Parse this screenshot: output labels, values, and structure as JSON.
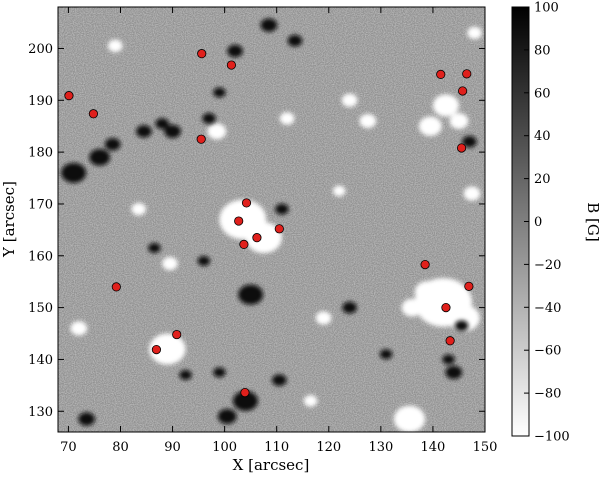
{
  "chart_data": {
    "type": "scatter",
    "background": "grayscale magnetogram map",
    "xlabel": "X [arcsec]",
    "ylabel": "Y [arcsec]",
    "xlim": [
      68,
      150
    ],
    "ylim": [
      126,
      208
    ],
    "xticks": [
      70,
      80,
      90,
      100,
      110,
      120,
      130,
      140,
      150
    ],
    "yticks": [
      130,
      140,
      150,
      160,
      170,
      180,
      190,
      200
    ],
    "colorbar": {
      "label": "B [G]",
      "range": [
        -100,
        100
      ],
      "ticks": [
        100,
        80,
        60,
        40,
        20,
        0,
        -20,
        -40,
        -60,
        -80,
        -100
      ],
      "tick_labels": [
        "100",
        "80",
        "60",
        "40",
        "20",
        "0",
        "−20",
        "−40",
        "−60",
        "−80",
        "−100"
      ],
      "colormap": "gray: -100 white to 100 black"
    },
    "marker_color": "#e0201c",
    "points": [
      {
        "x": 70.1,
        "y": 190.9
      },
      {
        "x": 74.8,
        "y": 187.4
      },
      {
        "x": 95.6,
        "y": 199.0
      },
      {
        "x": 101.3,
        "y": 196.8
      },
      {
        "x": 95.5,
        "y": 182.5
      },
      {
        "x": 141.5,
        "y": 195.0
      },
      {
        "x": 146.5,
        "y": 195.1
      },
      {
        "x": 145.7,
        "y": 191.8
      },
      {
        "x": 145.5,
        "y": 180.8
      },
      {
        "x": 104.2,
        "y": 170.2
      },
      {
        "x": 102.7,
        "y": 166.7
      },
      {
        "x": 110.5,
        "y": 165.2
      },
      {
        "x": 106.2,
        "y": 163.5
      },
      {
        "x": 103.7,
        "y": 162.2
      },
      {
        "x": 138.5,
        "y": 158.3
      },
      {
        "x": 79.2,
        "y": 154.0
      },
      {
        "x": 146.9,
        "y": 154.1
      },
      {
        "x": 142.5,
        "y": 150.0
      },
      {
        "x": 90.8,
        "y": 144.8
      },
      {
        "x": 143.3,
        "y": 143.6
      },
      {
        "x": 86.9,
        "y": 141.9
      },
      {
        "x": 103.9,
        "y": 133.6
      }
    ],
    "bright_patches": [
      {
        "x": 103.5,
        "y": 167.0,
        "r": 4.5
      },
      {
        "x": 107.5,
        "y": 163.5,
        "r": 3.5
      },
      {
        "x": 142.0,
        "y": 151.0,
        "r": 5.5
      },
      {
        "x": 146.0,
        "y": 148.0,
        "r": 3.0
      },
      {
        "x": 139.0,
        "y": 153.0,
        "r": 2.5
      },
      {
        "x": 89.0,
        "y": 142.0,
        "r": 3.5
      },
      {
        "x": 135.5,
        "y": 128.5,
        "r": 3.0
      },
      {
        "x": 142.5,
        "y": 189.0,
        "r": 2.5
      },
      {
        "x": 139.5,
        "y": 185.0,
        "r": 2.2
      },
      {
        "x": 145.0,
        "y": 186.0,
        "r": 1.8
      },
      {
        "x": 98.5,
        "y": 184.0,
        "r": 1.8
      },
      {
        "x": 89.5,
        "y": 158.5,
        "r": 1.5
      },
      {
        "x": 136.0,
        "y": 150.0,
        "r": 2.0
      },
      {
        "x": 124.0,
        "y": 190.0,
        "r": 1.5
      },
      {
        "x": 127.5,
        "y": 186.0,
        "r": 1.6
      },
      {
        "x": 112.0,
        "y": 186.5,
        "r": 1.4
      },
      {
        "x": 119.0,
        "y": 148.0,
        "r": 1.5
      },
      {
        "x": 83.5,
        "y": 169.0,
        "r": 1.4
      },
      {
        "x": 72.0,
        "y": 146.0,
        "r": 1.6
      },
      {
        "x": 147.5,
        "y": 172.0,
        "r": 1.6
      },
      {
        "x": 79.0,
        "y": 200.5,
        "r": 1.4
      },
      {
        "x": 148.0,
        "y": 203.0,
        "r": 1.4
      },
      {
        "x": 116.5,
        "y": 132.0,
        "r": 1.3
      },
      {
        "x": 122.0,
        "y": 172.5,
        "r": 1.2
      }
    ],
    "dark_patches": [
      {
        "x": 105.0,
        "y": 152.5,
        "r": 2.4
      },
      {
        "x": 104.0,
        "y": 132.0,
        "r": 2.4
      },
      {
        "x": 100.5,
        "y": 129.0,
        "r": 1.8
      },
      {
        "x": 71.0,
        "y": 176.0,
        "r": 2.4
      },
      {
        "x": 76.0,
        "y": 179.0,
        "r": 2.0
      },
      {
        "x": 78.5,
        "y": 181.5,
        "r": 1.5
      },
      {
        "x": 84.5,
        "y": 184.0,
        "r": 1.5
      },
      {
        "x": 90.0,
        "y": 184.0,
        "r": 1.6
      },
      {
        "x": 88.0,
        "y": 185.5,
        "r": 1.3
      },
      {
        "x": 108.5,
        "y": 204.5,
        "r": 1.6
      },
      {
        "x": 102.0,
        "y": 199.5,
        "r": 1.5
      },
      {
        "x": 113.5,
        "y": 201.5,
        "r": 1.4
      },
      {
        "x": 73.5,
        "y": 128.5,
        "r": 1.6
      },
      {
        "x": 144.0,
        "y": 137.5,
        "r": 1.6
      },
      {
        "x": 143.0,
        "y": 140.0,
        "r": 1.2
      },
      {
        "x": 124.0,
        "y": 150.0,
        "r": 1.4
      },
      {
        "x": 111.0,
        "y": 169.0,
        "r": 1.3
      },
      {
        "x": 110.5,
        "y": 136.0,
        "r": 1.4
      },
      {
        "x": 147.0,
        "y": 182.0,
        "r": 1.4
      },
      {
        "x": 97.0,
        "y": 186.5,
        "r": 1.3
      },
      {
        "x": 99.0,
        "y": 191.5,
        "r": 1.2
      },
      {
        "x": 86.5,
        "y": 161.5,
        "r": 1.2
      },
      {
        "x": 96.0,
        "y": 159.0,
        "r": 1.2
      },
      {
        "x": 131.0,
        "y": 141.0,
        "r": 1.2
      },
      {
        "x": 145.5,
        "y": 146.5,
        "r": 1.3
      },
      {
        "x": 99.0,
        "y": 137.5,
        "r": 1.2
      },
      {
        "x": 92.5,
        "y": 137.0,
        "r": 1.2
      }
    ]
  }
}
